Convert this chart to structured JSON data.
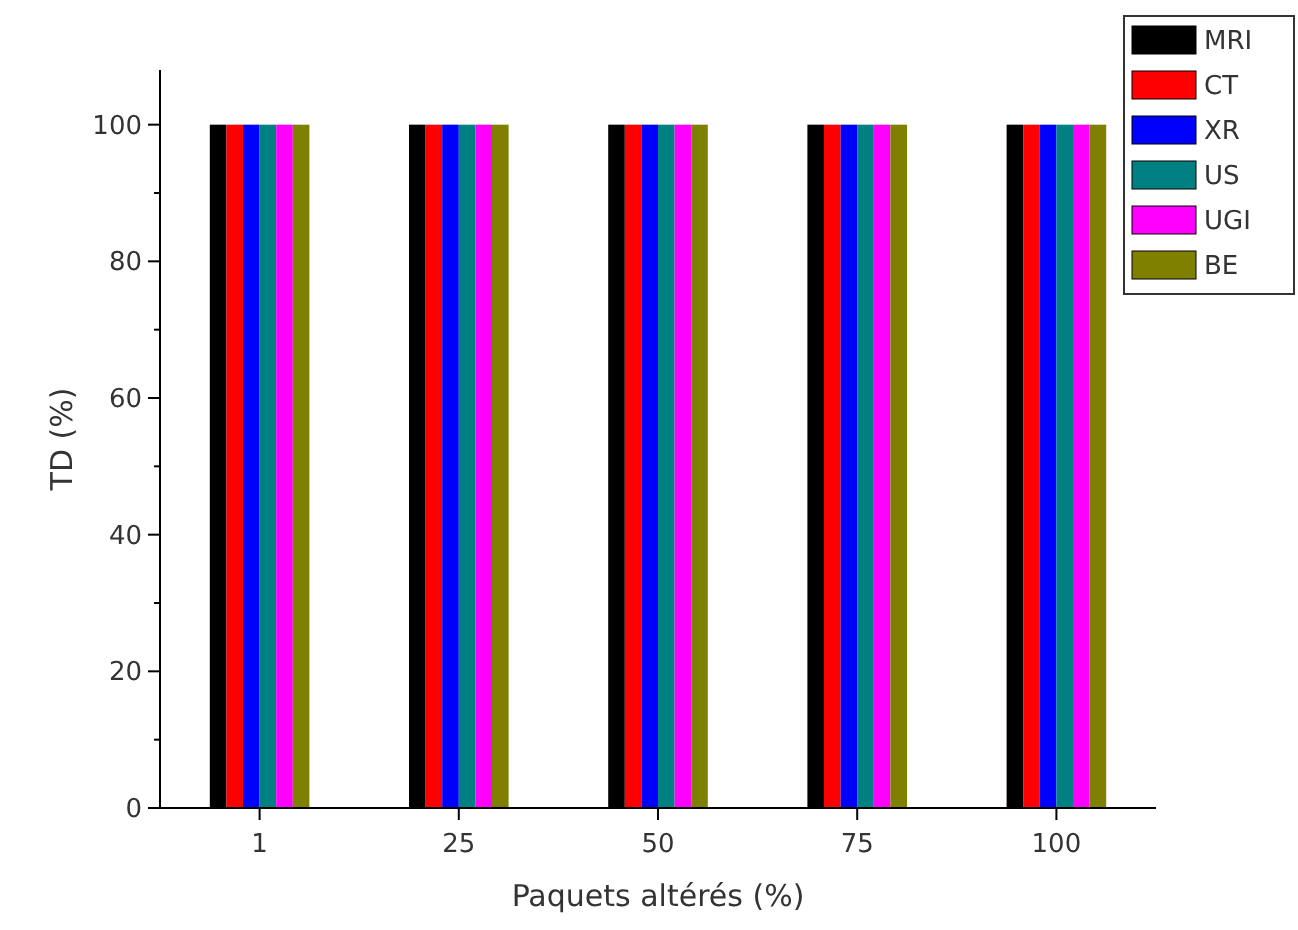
{
  "chart_data": {
    "type": "bar",
    "xlabel": "Paquets altérés (%)",
    "ylabel": "TD (%)",
    "categories": [
      "1",
      "25",
      "50",
      "75",
      "100"
    ],
    "series": [
      {
        "name": "MRI",
        "color": "#000000",
        "values": [
          100,
          100,
          100,
          100,
          100
        ]
      },
      {
        "name": "CT",
        "color": "#ff0000",
        "values": [
          100,
          100,
          100,
          100,
          100
        ]
      },
      {
        "name": "XR",
        "color": "#0000ff",
        "values": [
          100,
          100,
          100,
          100,
          100
        ]
      },
      {
        "name": "US",
        "color": "#008080",
        "values": [
          100,
          100,
          100,
          100,
          100
        ]
      },
      {
        "name": "UGI",
        "color": "#ff00ff",
        "values": [
          100,
          100,
          100,
          100,
          100
        ]
      },
      {
        "name": "BE",
        "color": "#808000",
        "values": [
          100,
          100,
          100,
          100,
          100
        ]
      }
    ],
    "ylim": [
      0,
      108
    ],
    "yticks": [
      0,
      {
        "value": 10,
        "label": null
      },
      20,
      {
        "value": 30,
        "label": null
      },
      40,
      {
        "value": 50,
        "label": null
      },
      60,
      {
        "value": 70,
        "label": null
      },
      80,
      {
        "value": 90,
        "label": null
      },
      100
    ],
    "grid": false,
    "legend": "top right"
  }
}
